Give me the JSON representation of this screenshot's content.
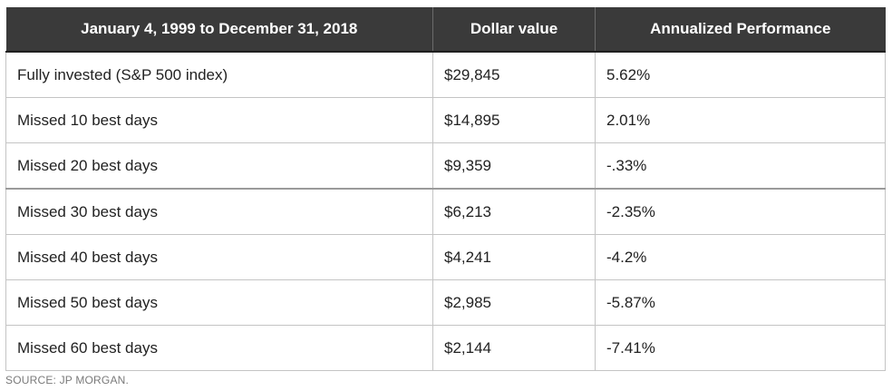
{
  "table": {
    "headers": [
      "January 4, 1999 to December 31, 2018",
      "Dollar value",
      "Annualized Performance"
    ],
    "rows": [
      [
        "Fully invested (S&P 500 index)",
        "$29,845",
        "5.62%"
      ],
      [
        "Missed 10 best days",
        "$14,895",
        "2.01%"
      ],
      [
        "Missed 20 best days",
        "$9,359",
        "-.33%"
      ],
      [
        "Missed 30 best days",
        "$6,213",
        "-2.35%"
      ],
      [
        "Missed 40 best days",
        "$4,241",
        "-4.2%"
      ],
      [
        "Missed 50 best days",
        "$2,985",
        "-5.87%"
      ],
      [
        "Missed 60 best days",
        "$2,144",
        "-7.41%"
      ]
    ]
  },
  "source": "SOURCE: JP MORGAN."
}
